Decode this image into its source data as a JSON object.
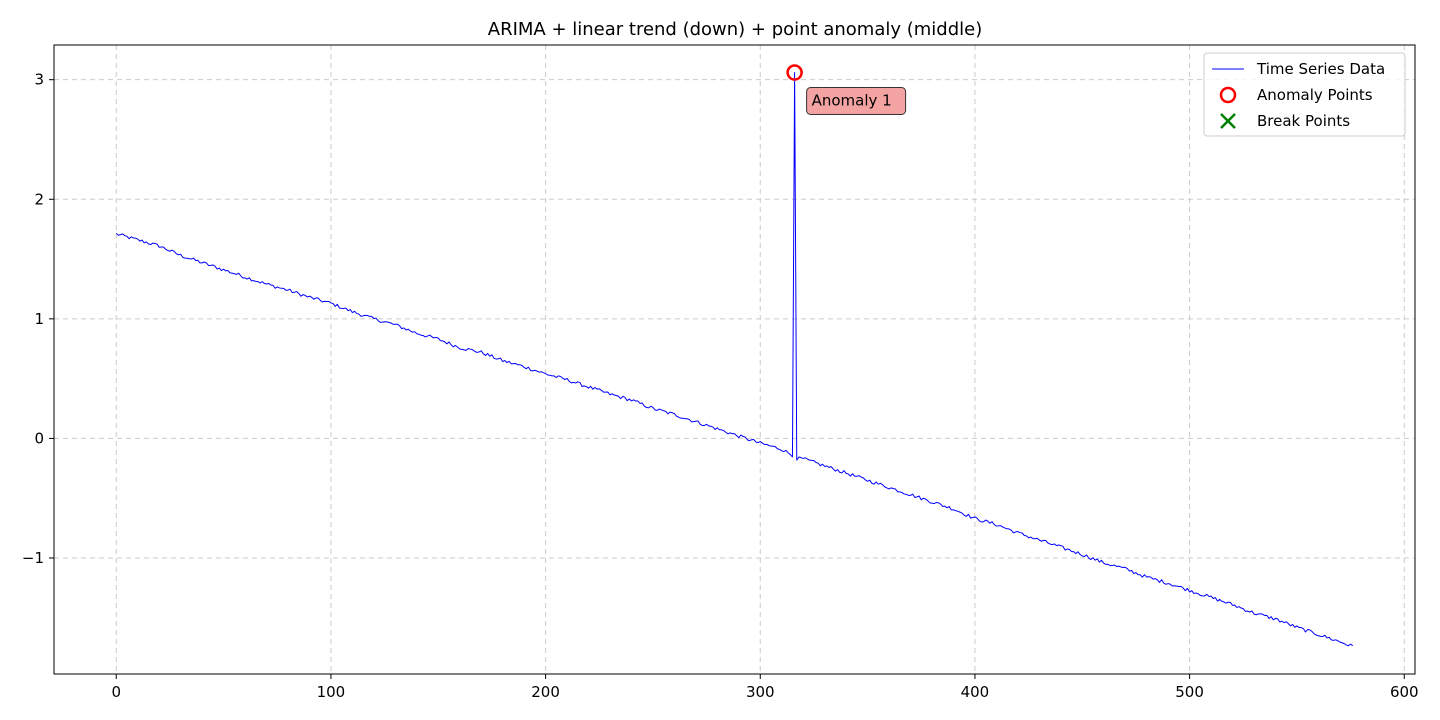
{
  "chart_data": {
    "type": "line",
    "title": "ARIMA + linear trend (down) + point anomaly (middle)",
    "xlabel": "",
    "ylabel": "",
    "xlim": [
      -29,
      605
    ],
    "ylim": [
      -1.97,
      3.29
    ],
    "x_ticks": [
      0,
      100,
      200,
      300,
      400,
      500,
      600
    ],
    "x_tick_labels": [
      "0",
      "100",
      "200",
      "300",
      "400",
      "500",
      "600"
    ],
    "y_ticks": [
      -1,
      0,
      1,
      2,
      3
    ],
    "y_tick_labels": [
      "−1",
      "0",
      "1",
      "2",
      "3"
    ],
    "grid": true,
    "legend_placement": "top-right",
    "colors": {
      "series": "#0000ff",
      "anomaly_marker": "#ff0000",
      "break_marker": "#008000",
      "annotation_fill": "#f4a3a3",
      "grid": "#cccccc"
    },
    "series": [
      {
        "name": "Time Series Data",
        "x_start": 0,
        "x_end": 576,
        "trend": {
          "start_value": 1.7,
          "end_value": -1.74
        },
        "points": [
          [
            0,
            1.71
          ],
          [
            10,
            1.66
          ],
          [
            20,
            1.61
          ],
          [
            30,
            1.53
          ],
          [
            40,
            1.47
          ],
          [
            50,
            1.41
          ],
          [
            60,
            1.35
          ],
          [
            70,
            1.29
          ],
          [
            80,
            1.24
          ],
          [
            90,
            1.18
          ],
          [
            100,
            1.13
          ],
          [
            110,
            1.06
          ],
          [
            120,
            1.0
          ],
          [
            130,
            0.95
          ],
          [
            140,
            0.88
          ],
          [
            150,
            0.83
          ],
          [
            160,
            0.76
          ],
          [
            170,
            0.72
          ],
          [
            180,
            0.65
          ],
          [
            190,
            0.6
          ],
          [
            200,
            0.54
          ],
          [
            210,
            0.49
          ],
          [
            220,
            0.43
          ],
          [
            230,
            0.37
          ],
          [
            240,
            0.32
          ],
          [
            250,
            0.25
          ],
          [
            260,
            0.2
          ],
          [
            270,
            0.14
          ],
          [
            280,
            0.08
          ],
          [
            290,
            0.02
          ],
          [
            300,
            -0.04
          ],
          [
            310,
            -0.09
          ],
          [
            315,
            -0.14
          ],
          [
            316,
            3.06
          ],
          [
            317,
            -0.17
          ],
          [
            320,
            -0.17
          ],
          [
            330,
            -0.23
          ],
          [
            340,
            -0.29
          ],
          [
            350,
            -0.35
          ],
          [
            360,
            -0.41
          ],
          [
            370,
            -0.47
          ],
          [
            380,
            -0.53
          ],
          [
            390,
            -0.59
          ],
          [
            400,
            -0.67
          ],
          [
            410,
            -0.72
          ],
          [
            420,
            -0.79
          ],
          [
            430,
            -0.85
          ],
          [
            440,
            -0.91
          ],
          [
            450,
            -0.97
          ],
          [
            460,
            -1.04
          ],
          [
            470,
            -1.09
          ],
          [
            480,
            -1.16
          ],
          [
            490,
            -1.21
          ],
          [
            500,
            -1.27
          ],
          [
            510,
            -1.33
          ],
          [
            520,
            -1.39
          ],
          [
            530,
            -1.46
          ],
          [
            540,
            -1.51
          ],
          [
            550,
            -1.58
          ],
          [
            560,
            -1.64
          ],
          [
            570,
            -1.7
          ],
          [
            576,
            -1.74
          ]
        ]
      }
    ],
    "anomaly_points": [
      {
        "x": 316,
        "y": 3.06
      }
    ],
    "break_points": [],
    "annotations": [
      {
        "text": "Anomaly 1",
        "x": 316,
        "y": 3.06
      }
    ],
    "legend": [
      {
        "label": "Time Series Data",
        "marker": "line"
      },
      {
        "label": "Anomaly Points",
        "marker": "circle"
      },
      {
        "label": "Break Points",
        "marker": "x"
      }
    ]
  }
}
